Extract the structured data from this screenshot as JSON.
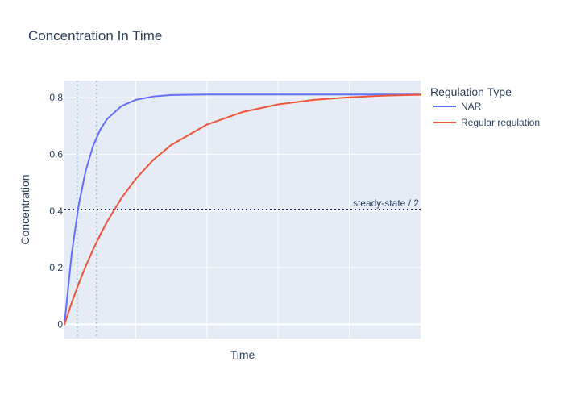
{
  "chart_data": {
    "type": "line",
    "title": "Concentration In Time",
    "xlabel": "Time",
    "ylabel": "Concentration",
    "xlim": [
      0,
      5
    ],
    "ylim": [
      -0.05,
      0.86
    ],
    "yticks": [
      0,
      0.2,
      0.4,
      0.6,
      0.8
    ],
    "ytick_labels": [
      "0",
      "0.2",
      "0.4",
      "0.6",
      "0.8"
    ],
    "x_gridlines": [
      1,
      2,
      3,
      4
    ],
    "grid": true,
    "legend": {
      "title": "Regulation Type",
      "position": "right",
      "entries": [
        "NAR",
        "Regular regulation"
      ]
    },
    "series": [
      {
        "name": "NAR",
        "color": "#636efa",
        "x": [
          0,
          0.1,
          0.2,
          0.3,
          0.4,
          0.5,
          0.6,
          0.8,
          1.0,
          1.25,
          1.5,
          2.0,
          2.5,
          3.0,
          4.0,
          5.0
        ],
        "y": [
          0,
          0.246,
          0.421,
          0.544,
          0.628,
          0.686,
          0.725,
          0.77,
          0.792,
          0.804,
          0.809,
          0.811,
          0.811,
          0.811,
          0.811,
          0.811
        ]
      },
      {
        "name": "Regular regulation",
        "color": "#ef553b",
        "x": [
          0,
          0.1,
          0.2,
          0.3,
          0.4,
          0.5,
          0.6,
          0.8,
          1.0,
          1.25,
          1.5,
          2.0,
          2.5,
          3.0,
          3.5,
          4.0,
          4.5,
          5.0
        ],
        "y": [
          0,
          0.075,
          0.144,
          0.206,
          0.263,
          0.315,
          0.363,
          0.445,
          0.513,
          0.581,
          0.633,
          0.705,
          0.749,
          0.776,
          0.792,
          0.801,
          0.807,
          0.81
        ]
      }
    ],
    "reference_lines": {
      "steady_state_half": {
        "y": 0.405,
        "color": "#1f2d4f",
        "style": "dotted",
        "label": "steady-state / 2"
      },
      "nar_half_time": {
        "x": 0.18,
        "color": "#9ecae1",
        "style": "dotted"
      },
      "regular_half_time": {
        "x": 0.45,
        "color": "#9ecae1",
        "style": "dotted"
      }
    },
    "colors": {
      "plot_background": "#e5ecf6",
      "gridline": "#ffffff"
    }
  }
}
